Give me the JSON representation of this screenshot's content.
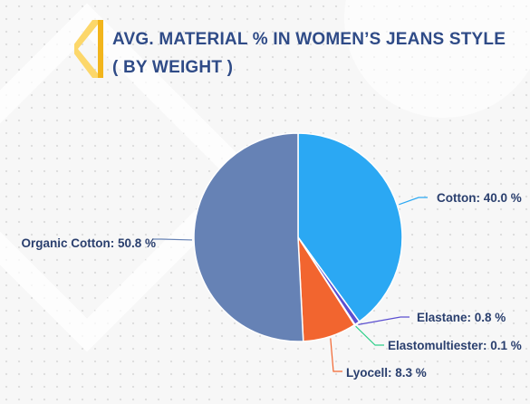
{
  "title": "AVG. MATERIAL % IN WOMEN’S JEANS STYLE ( BY WEIGHT )",
  "chart_data": {
    "type": "pie",
    "title": "AVG. MATERIAL % IN WOMEN’S JEANS STYLE ( BY WEIGHT )",
    "slices": [
      {
        "name": "Cotton",
        "value": 40.0,
        "label": "Cotton: 40.0 %",
        "color": "#2ba8f3"
      },
      {
        "name": "Elastane",
        "value": 0.8,
        "label": "Elastane: 0.8 %",
        "color": "#5b4fd0"
      },
      {
        "name": "Elastomultiester",
        "value": 0.1,
        "label": "Elastomultiester: 0.1 %",
        "color": "#2fcf8a"
      },
      {
        "name": "Lyocell",
        "value": 8.3,
        "label": "Lyocell: 8.3 %",
        "color": "#f2652f"
      },
      {
        "name": "Organic Cotton",
        "value": 50.8,
        "label": "Organic Cotton: 50.8 %",
        "color": "#6682b5"
      }
    ]
  }
}
